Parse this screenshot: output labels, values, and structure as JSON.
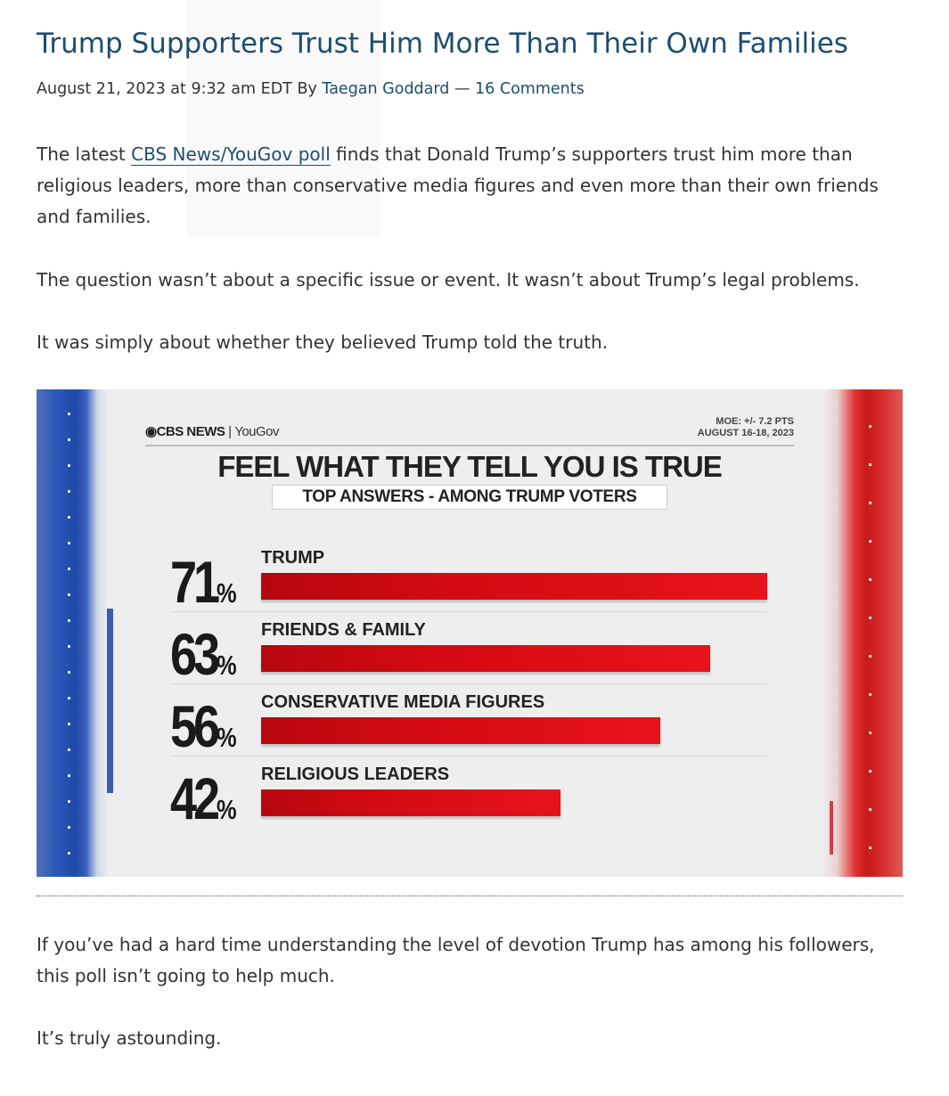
{
  "article": {
    "title": "Trump Supporters Trust Him More Than Their Own Families",
    "meta": {
      "date": "August 21, 2023 at 9:32 am EDT",
      "by": "By",
      "author": "Taegan Goddard",
      "dash": "—",
      "comments": "16 Comments"
    },
    "p1_before": "The latest ",
    "p1_link": "CBS News/YouGov poll",
    "p1_after": " finds that Donald Trump’s supporters trust him more than religious leaders, more than conservative media figures and even more than their own friends and families.",
    "p2": "The question wasn’t about a specific issue or event. It wasn’t about Trump’s legal problems.",
    "p3": "It was simply about whether they believed Trump told the truth.",
    "p4": "If you’ve had a hard time understanding the level of devotion Trump has among his followers, this poll isn’t going to help much.",
    "p5": "It’s truly astounding."
  },
  "graphic": {
    "brand_cbs": "CBS NEWS",
    "brand_sep": "|",
    "brand_yougov": "YouGov",
    "moe": "MOE: +/- 7.2 PTS",
    "dates": "AUGUST 16-18, 2023",
    "colors": {
      "bar": "#d40a12",
      "rail_left": "#2a56b8",
      "rail_right": "#d62c2c"
    }
  },
  "chart_data": {
    "type": "bar",
    "title": "FEEL WHAT THEY TELL YOU IS TRUE",
    "subtitle": "TOP ANSWERS - AMONG TRUMP VOTERS",
    "categories": [
      "TRUMP",
      "FRIENDS & FAMILY",
      "CONSERVATIVE MEDIA FIGURES",
      "RELIGIOUS LEADERS"
    ],
    "values": [
      71,
      63,
      56,
      42
    ],
    "unit": "%",
    "xlim": [
      0,
      100
    ]
  }
}
